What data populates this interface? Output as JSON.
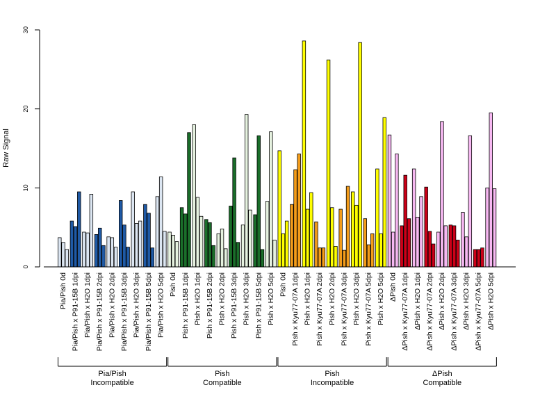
{
  "chart_data": {
    "type": "bar",
    "ylabel": "Raw Signal",
    "ylim": [
      0,
      30
    ],
    "yticks": [
      0,
      10,
      20,
      30
    ],
    "colors": {
      "light_blue": "#dce6f2",
      "dark_blue": "#1f5aa6",
      "light_green": "#e6f2e0",
      "dark_green": "#1a6e2a",
      "yellow": "#ffff00",
      "orange": "#f39c1a",
      "light_pink": "#f7b8f2",
      "red": "#cc0018"
    },
    "groups": [
      {
        "label": "Pia/Pish 0d",
        "color": "light_blue",
        "values": [
          3.7,
          3.1,
          2.2
        ]
      },
      {
        "label": "Pia/Pish x P91-15B 1dpi",
        "color": "dark_blue",
        "values": [
          5.8,
          5.1,
          9.5
        ]
      },
      {
        "label": "Pia/Pish x H2O 1dpi",
        "color": "light_blue",
        "values": [
          4.4,
          4.3,
          9.2
        ]
      },
      {
        "label": "Pia/Pish x P91-15B 2dpi",
        "color": "dark_blue",
        "values": [
          4.1,
          4.9,
          2.7
        ]
      },
      {
        "label": "Pia/Pish x H2O 2dpi",
        "color": "light_blue",
        "values": [
          3.8,
          3.7,
          2.5
        ]
      },
      {
        "label": "Pia/Pish x P91-15B 3dpi",
        "color": "dark_blue",
        "values": [
          8.4,
          5.3,
          2.5
        ]
      },
      {
        "label": "Pia/Pish x H2O 3dpi",
        "color": "light_blue",
        "values": [
          9.5,
          5.5,
          5.8
        ]
      },
      {
        "label": "Pia/Pish x P91-15B 5dpi",
        "color": "dark_blue",
        "values": [
          7.9,
          6.8,
          2.4
        ]
      },
      {
        "label": "Pia/Pish x H2O 5dpi",
        "color": "light_blue",
        "values": [
          8.9,
          11.4,
          4.5
        ]
      },
      {
        "label": "Pish 0d",
        "color": "light_green",
        "values": [
          4.4,
          4.0,
          3.2
        ]
      },
      {
        "label": "Pish x P91-15B 1dpi",
        "color": "dark_green",
        "values": [
          7.5,
          6.7,
          17.0
        ]
      },
      {
        "label": "Pish x H2O 1dpi",
        "color": "light_green",
        "values": [
          18.0,
          8.8,
          6.4
        ]
      },
      {
        "label": "Pish x P91-15B 2dpi",
        "color": "dark_green",
        "values": [
          6.0,
          5.6,
          2.7
        ]
      },
      {
        "label": "Pish x H2O 2dpi",
        "color": "light_green",
        "values": [
          4.2,
          4.8,
          2.3
        ]
      },
      {
        "label": "Pish x P91-15B 3dpi",
        "color": "dark_green",
        "values": [
          7.7,
          13.8,
          3.1
        ]
      },
      {
        "label": "Pish x H2O 3dpi",
        "color": "light_green",
        "values": [
          5.3,
          19.3,
          7.2
        ]
      },
      {
        "label": "Pish x P91-15B 5dpi",
        "color": "dark_green",
        "values": [
          6.6,
          16.6,
          2.2
        ]
      },
      {
        "label": "Pish x H2O 5dpi",
        "color": "light_green",
        "values": [
          8.3,
          17.1,
          3.4
        ]
      },
      {
        "label": "Pish 0d",
        "color": "yellow",
        "values": [
          14.7,
          4.2,
          5.8
        ]
      },
      {
        "label": "Pish x Kyu77-07A 1dpi",
        "color": "orange",
        "values": [
          7.9,
          12.3,
          14.3
        ]
      },
      {
        "label": "Pish x H2O 1dpi",
        "color": "yellow",
        "values": [
          28.6,
          7.3,
          9.4
        ]
      },
      {
        "label": "Pish x Kyu77-07A 2dpi",
        "color": "orange",
        "values": [
          5.7,
          2.4,
          2.4
        ]
      },
      {
        "label": "Pish x H2O 2dpi",
        "color": "yellow",
        "values": [
          26.2,
          7.5,
          2.6
        ]
      },
      {
        "label": "Pish x Kyu77-07A 3dpi",
        "color": "orange",
        "values": [
          7.3,
          2.1,
          10.2
        ]
      },
      {
        "label": "Pish x H2O 3dpi",
        "color": "yellow",
        "values": [
          9.5,
          7.8,
          28.4
        ]
      },
      {
        "label": "Pish x Kyu77-07A 5dpi",
        "color": "orange",
        "values": [
          6.1,
          2.8,
          4.2
        ]
      },
      {
        "label": "Pish x H2O 5dpi",
        "color": "yellow",
        "values": [
          12.4,
          4.2,
          18.9
        ]
      },
      {
        "label": "ΔPish 0d",
        "color": "light_pink",
        "values": [
          16.7,
          4.4,
          14.3
        ]
      },
      {
        "label": "ΔPish x Kyu77-07A 1dpi",
        "color": "red",
        "values": [
          5.2,
          11.6,
          6.1
        ]
      },
      {
        "label": "ΔPish x H2O 1dpi",
        "color": "light_pink",
        "values": [
          12.4,
          6.3,
          8.9
        ]
      },
      {
        "label": "ΔPish x Kyu77-07A 2dpi",
        "color": "red",
        "values": [
          10.1,
          4.5,
          2.9
        ]
      },
      {
        "label": "ΔPish x H2O 2dpi",
        "color": "light_pink",
        "values": [
          4.4,
          18.4,
          5.2
        ]
      },
      {
        "label": "ΔPish x Kyu77-07A 3dpi",
        "color": "red",
        "values": [
          5.3,
          5.2,
          3.4
        ]
      },
      {
        "label": "ΔPish x H2O 3dpi",
        "color": "light_pink",
        "values": [
          6.9,
          3.8,
          16.6
        ]
      },
      {
        "label": "ΔPish x Kyu77-07A 5dpi",
        "color": "red",
        "values": [
          2.2,
          2.2,
          2.4
        ]
      },
      {
        "label": "ΔPish x H2O 5dpi",
        "color": "light_pink",
        "values": [
          10.0,
          19.5,
          9.9
        ]
      }
    ],
    "sections": [
      {
        "line1": "Pia/Pish",
        "line2": "Incompatible",
        "group_start": 0,
        "group_end": 8
      },
      {
        "line1": "Pish",
        "line2": "Compatible",
        "group_start": 9,
        "group_end": 17
      },
      {
        "line1": "Pish",
        "line2": "Incompatible",
        "group_start": 18,
        "group_end": 26
      },
      {
        "line1": "ΔPish",
        "line2": "Compatible",
        "group_start": 27,
        "group_end": 35
      }
    ]
  }
}
